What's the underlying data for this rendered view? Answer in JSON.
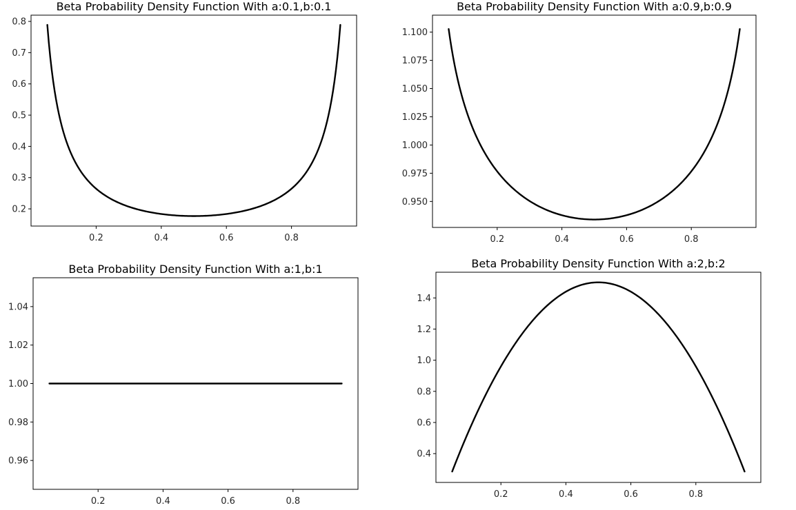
{
  "figure": {
    "background": "#ffffff",
    "line_color": "#000000"
  },
  "chart_data": [
    {
      "type": "line",
      "title": "Beta Probability Density Function With a:0.1,b:0.1",
      "alpha": 0.1,
      "beta": 0.1,
      "x_range": [
        0.05,
        0.95
      ],
      "xlim": [
        0.0,
        1.0
      ],
      "ylim": [
        0.145,
        0.82
      ],
      "xticks": [
        0.2,
        0.4,
        0.6,
        0.8
      ],
      "xtick_labels": [
        "0.2",
        "0.4",
        "0.6",
        "0.8"
      ],
      "yticks": [
        0.2,
        0.3,
        0.4,
        0.5,
        0.6,
        0.7,
        0.8
      ],
      "ytick_labels": [
        "0.2",
        "0.3",
        "0.4",
        "0.5",
        "0.6",
        "0.7",
        "0.8"
      ],
      "xlabel": "",
      "ylabel": "",
      "grid": false,
      "x": [
        0.05,
        0.1,
        0.15,
        0.2,
        0.25,
        0.3,
        0.35,
        0.4,
        0.45,
        0.5,
        0.55,
        0.6,
        0.65,
        0.7,
        0.75,
        0.8,
        0.85,
        0.9,
        0.95
      ],
      "y": [
        0.789,
        0.428,
        0.304,
        0.246,
        0.215,
        0.197,
        0.187,
        0.181,
        0.178,
        0.177,
        0.178,
        0.181,
        0.187,
        0.197,
        0.215,
        0.246,
        0.304,
        0.428,
        0.789
      ]
    },
    {
      "type": "line",
      "title": "Beta Probability Density Function With a:0.9,b:0.9",
      "alpha": 0.9,
      "beta": 0.9,
      "x_range": [
        0.05,
        0.95
      ],
      "xlim": [
        0.0,
        1.0
      ],
      "ylim": [
        0.927,
        1.115
      ],
      "xticks": [
        0.2,
        0.4,
        0.6,
        0.8
      ],
      "xtick_labels": [
        "0.2",
        "0.4",
        "0.6",
        "0.8"
      ],
      "yticks": [
        0.95,
        0.975,
        1.0,
        1.025,
        1.05,
        1.075,
        1.1
      ],
      "ytick_labels": [
        "0.950",
        "0.975",
        "1.000",
        "1.025",
        "1.050",
        "1.075",
        "1.100"
      ],
      "xlabel": "",
      "ylabel": "",
      "grid": false,
      "x": [
        0.05,
        0.1,
        0.15,
        0.2,
        0.25,
        0.3,
        0.35,
        0.4,
        0.45,
        0.5,
        0.55,
        0.6,
        0.65,
        0.7,
        0.75,
        0.8,
        0.85,
        0.9,
        0.95
      ],
      "y": [
        1.106,
        1.049,
        1.012,
        0.987,
        0.969,
        0.955,
        0.945,
        0.939,
        0.935,
        0.934,
        0.935,
        0.939,
        0.945,
        0.955,
        0.969,
        0.987,
        1.012,
        1.049,
        1.106
      ]
    },
    {
      "type": "line",
      "title": "Beta Probability Density Function With a:1,b:1",
      "alpha": 1,
      "beta": 1,
      "x_range": [
        0.05,
        0.95
      ],
      "xlim": [
        0.0,
        1.0
      ],
      "ylim": [
        0.945,
        1.055
      ],
      "xticks": [
        0.2,
        0.4,
        0.6,
        0.8
      ],
      "xtick_labels": [
        "0.2",
        "0.4",
        "0.6",
        "0.8"
      ],
      "yticks": [
        0.96,
        0.98,
        1.0,
        1.02,
        1.04
      ],
      "ytick_labels": [
        "0.96",
        "0.98",
        "1.00",
        "1.02",
        "1.04"
      ],
      "xlabel": "",
      "ylabel": "",
      "grid": false,
      "x": [
        0.05,
        0.95
      ],
      "y": [
        1.0,
        1.0
      ]
    },
    {
      "type": "line",
      "title": "Beta Probability Density Function With a:2,b:2",
      "alpha": 2,
      "beta": 2,
      "x_range": [
        0.05,
        0.95
      ],
      "xlim": [
        0.0,
        1.0
      ],
      "ylim": [
        0.215,
        1.565
      ],
      "xticks": [
        0.2,
        0.4,
        0.6,
        0.8
      ],
      "xtick_labels": [
        "0.2",
        "0.4",
        "0.6",
        "0.8"
      ],
      "yticks": [
        0.4,
        0.6,
        0.8,
        1.0,
        1.2,
        1.4
      ],
      "ytick_labels": [
        "0.4",
        "0.6",
        "0.8",
        "1.0",
        "1.2",
        "1.4"
      ],
      "xlabel": "",
      "ylabel": "",
      "grid": false,
      "x": [
        0.05,
        0.1,
        0.15,
        0.2,
        0.25,
        0.3,
        0.35,
        0.4,
        0.45,
        0.5,
        0.55,
        0.6,
        0.65,
        0.7,
        0.75,
        0.8,
        0.85,
        0.9,
        0.95
      ],
      "y": [
        0.285,
        0.54,
        0.765,
        0.96,
        1.125,
        1.26,
        1.365,
        1.44,
        1.485,
        1.5,
        1.485,
        1.44,
        1.365,
        1.26,
        1.125,
        0.96,
        0.765,
        0.54,
        0.285
      ]
    }
  ]
}
